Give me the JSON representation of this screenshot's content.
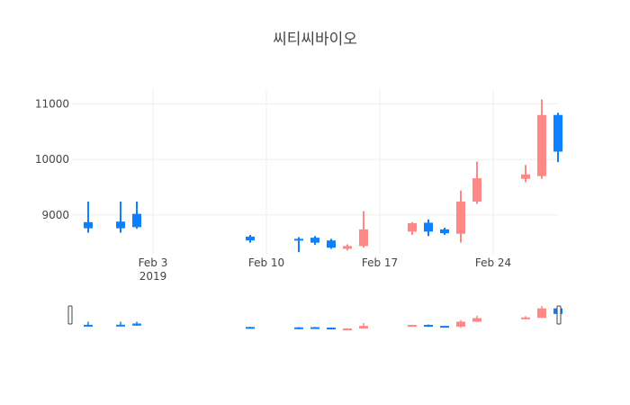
{
  "chart_data": {
    "type": "candlestick",
    "title": "씨티씨바이오",
    "x_ticks": [
      {
        "date": "2019-02-03",
        "label": "Feb 3",
        "sublabel": "2019"
      },
      {
        "date": "2019-02-10",
        "label": "Feb 10",
        "sublabel": ""
      },
      {
        "date": "2019-02-17",
        "label": "Feb 17",
        "sublabel": ""
      },
      {
        "date": "2019-02-24",
        "label": "Feb 24",
        "sublabel": ""
      }
    ],
    "y_ticks": [
      9000,
      10000,
      11000
    ],
    "y_tick_labels": [
      "9000",
      "10000",
      "11000"
    ],
    "xlim": [
      "2019-01-29",
      "2019-02-28"
    ],
    "ylim": [
      8300,
      11250
    ],
    "grid": true,
    "rangeslider": true,
    "increasing_color": "#ff8785",
    "decreasing_color": "#0c80ff",
    "candles": [
      {
        "date": "2019-01-30",
        "open": 8870,
        "high": 9240,
        "low": 8680,
        "close": 8760
      },
      {
        "date": "2019-02-01",
        "open": 8880,
        "high": 9240,
        "low": 8680,
        "close": 8760
      },
      {
        "date": "2019-02-02",
        "open": 9020,
        "high": 9240,
        "low": 8750,
        "close": 8780
      },
      {
        "date": "2019-02-09",
        "open": 8610,
        "high": 8640,
        "low": 8500,
        "close": 8540
      },
      {
        "date": "2019-02-12",
        "open": 8570,
        "high": 8600,
        "low": 8330,
        "close": 8550
      },
      {
        "date": "2019-02-13",
        "open": 8590,
        "high": 8620,
        "low": 8460,
        "close": 8500
      },
      {
        "date": "2019-02-14",
        "open": 8540,
        "high": 8570,
        "low": 8390,
        "close": 8410
      },
      {
        "date": "2019-02-15",
        "open": 8390,
        "high": 8470,
        "low": 8360,
        "close": 8440
      },
      {
        "date": "2019-02-16",
        "open": 8440,
        "high": 9070,
        "low": 8410,
        "close": 8740
      },
      {
        "date": "2019-02-19",
        "open": 8700,
        "high": 8870,
        "low": 8640,
        "close": 8850
      },
      {
        "date": "2019-02-20",
        "open": 8860,
        "high": 8920,
        "low": 8620,
        "close": 8700
      },
      {
        "date": "2019-02-21",
        "open": 8740,
        "high": 8770,
        "low": 8640,
        "close": 8670
      },
      {
        "date": "2019-02-22",
        "open": 8660,
        "high": 9440,
        "low": 8500,
        "close": 9240
      },
      {
        "date": "2019-02-23",
        "open": 9240,
        "high": 9960,
        "low": 9200,
        "close": 9660
      },
      {
        "date": "2019-02-26",
        "open": 9650,
        "high": 9900,
        "low": 9590,
        "close": 9730
      },
      {
        "date": "2019-02-27",
        "open": 9700,
        "high": 11080,
        "low": 9650,
        "close": 10800
      },
      {
        "date": "2019-02-28",
        "open": 10800,
        "high": 10840,
        "low": 9950,
        "close": 10140
      }
    ]
  }
}
